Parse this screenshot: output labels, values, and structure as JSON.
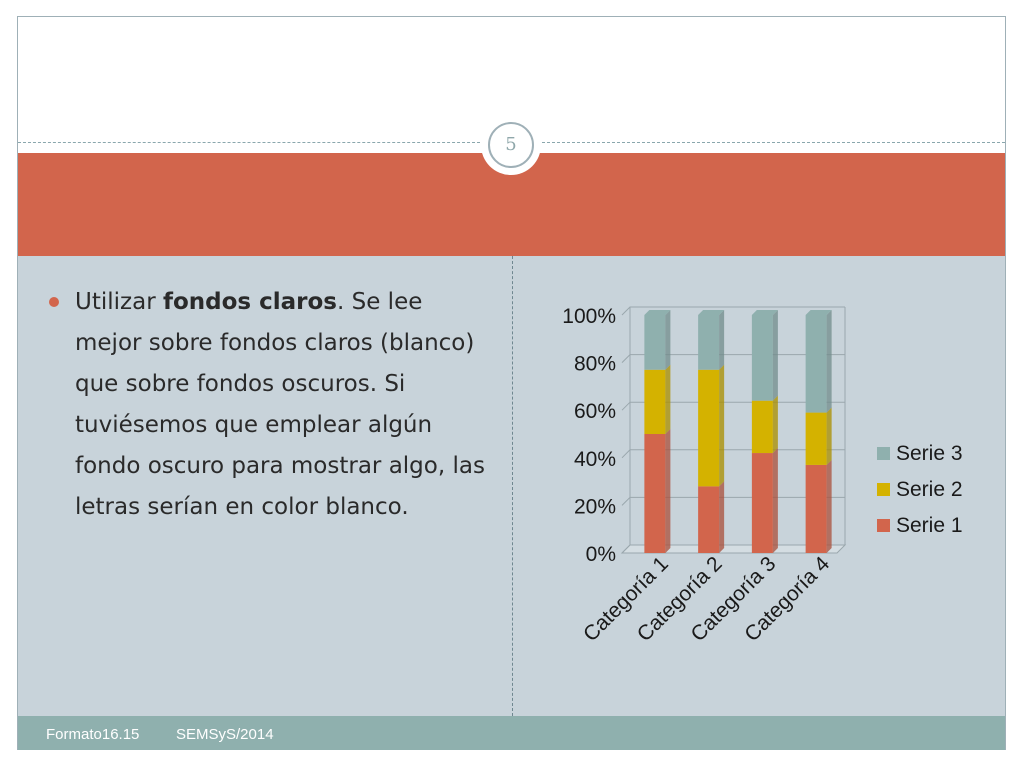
{
  "slide": {
    "page_number": "5",
    "bullet": {
      "before": "Utilizar ",
      "bold": "fondos claros",
      "after": ". Se lee mejor sobre fondos claros (blanco) que sobre fondos oscuros. Si tuviésemos que emplear algún fondo oscuro para mostrar algo, las letras serían en color blanco."
    }
  },
  "footer": {
    "left": "Formato16.15",
    "right": "SEMSyS/2014"
  },
  "colors": {
    "title_band": "#d2654c",
    "content_bg": "#c8d3da",
    "footer_bg": "#8fb0ae"
  },
  "chart_data": {
    "type": "bar",
    "stacked": "percent",
    "categories": [
      "Categoría 1",
      "Categoría 2",
      "Categoría 3",
      "Categoría 4"
    ],
    "series": [
      {
        "name": "Serie 1",
        "color": "#d2654c",
        "values": [
          50,
          28,
          42,
          37
        ]
      },
      {
        "name": "Serie 2",
        "color": "#d4b200",
        "values": [
          27,
          49,
          22,
          22
        ]
      },
      {
        "name": "Serie 3",
        "color": "#8fb0ae",
        "values": [
          23,
          23,
          36,
          41
        ]
      }
    ],
    "yticks": [
      "0%",
      "20%",
      "40%",
      "60%",
      "80%",
      "100%"
    ],
    "ylim": [
      0,
      100
    ],
    "legend_position": "right",
    "grid": true
  }
}
